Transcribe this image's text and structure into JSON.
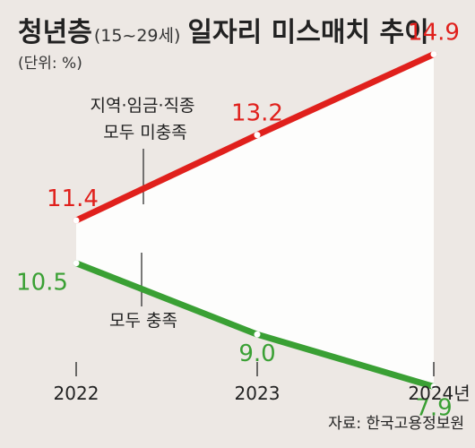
{
  "chart_data": {
    "type": "line",
    "title": "청년층",
    "title_paren": "(15~29세)",
    "title_rest": "일자리 미스매치 추이",
    "unit": "(단위: %)",
    "x": [
      "2022",
      "2023",
      "2024년"
    ],
    "series": [
      {
        "name": "지역·임금·직종 모두 미충족",
        "name_lines": [
          "지역·임금·직종",
          "모두 미충족"
        ],
        "values": [
          11.4,
          13.2,
          14.9
        ],
        "labels": [
          "11.4",
          "13.2",
          "14.9"
        ],
        "color": "#e0201c"
      },
      {
        "name": "모두 충족",
        "name_lines": [
          "모두 충족"
        ],
        "values": [
          10.5,
          9.0,
          7.9
        ],
        "labels": [
          "10.5",
          "9.0",
          "7.9"
        ],
        "color": "#3aa034"
      }
    ],
    "source": "자료: 한국고용정보원"
  }
}
